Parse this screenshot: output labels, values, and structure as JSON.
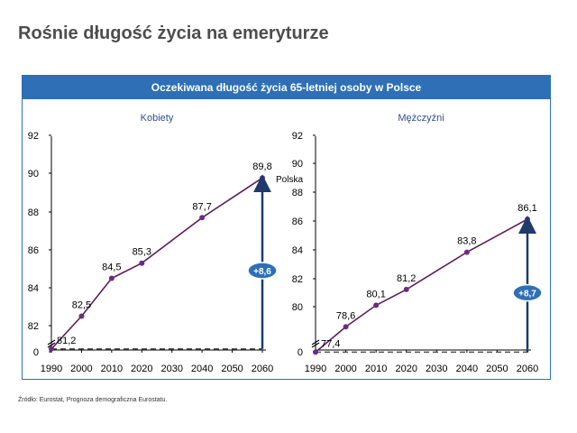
{
  "page": {
    "title": "Rośnie długość życia na emeryturze",
    "source": "Źródło: Eurostat, Prognoza demograficzna Eurostatu."
  },
  "colors": {
    "banner": "#2f6fb5",
    "line": "#5c1f5c",
    "marker": "#6a2d82",
    "arrow": "#1f3a6b",
    "bubble": "#2f6fb5",
    "subtitle": "#2f4f8f"
  },
  "chart_data": [
    {
      "type": "line",
      "title": "Oczekiwana długość życia 65-letniej osoby w Polsce",
      "subtitle": "Kobiety",
      "x": [
        1990,
        2000,
        2010,
        2020,
        2040,
        2060
      ],
      "values": [
        81.2,
        82.5,
        84.5,
        85.3,
        87.7,
        89.8
      ],
      "value_labels": [
        "81,2",
        "82,5",
        "84,5",
        "85,3",
        "87,7",
        "89,8"
      ],
      "xticks": [
        "1990",
        "2000",
        "2010",
        "2020",
        "2030",
        "2040",
        "2050",
        "2060"
      ],
      "yticks": [
        "0",
        "82",
        "84",
        "86",
        "88",
        "90",
        "92"
      ],
      "ylim": [
        81,
        92
      ],
      "axis_break": true,
      "baseline": 81.2,
      "increase_label": "+8,6"
    },
    {
      "type": "line",
      "subtitle": "Mężczyźni",
      "x": [
        1990,
        2000,
        2010,
        2020,
        2040,
        2060
      ],
      "values": [
        77.4,
        78.6,
        80.1,
        81.2,
        83.8,
        86.1
      ],
      "value_labels": [
        "77,4",
        "78,6",
        "80,1",
        "81,2",
        "83,8",
        "86,1"
      ],
      "xticks": [
        "1990",
        "2000",
        "2010",
        "2020",
        "2030",
        "2040",
        "2050",
        "2060"
      ],
      "yticks": [
        "0",
        "80",
        "82",
        "84",
        "86",
        "88",
        "90",
        "92"
      ],
      "ylim": [
        77,
        92
      ],
      "axis_break": true,
      "baseline": 77.4,
      "increase_label": "+8,7",
      "annotation": "Polska"
    }
  ]
}
